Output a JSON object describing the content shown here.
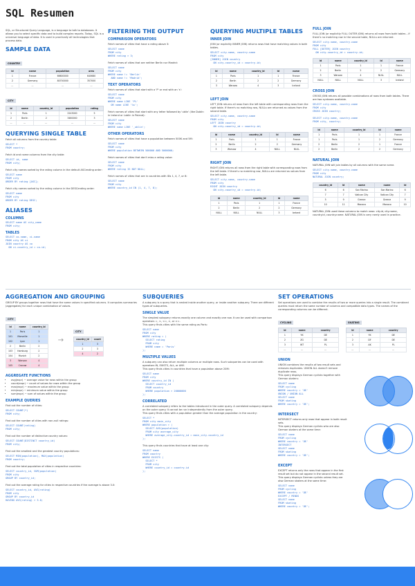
{
  "title": "SQL Resumen",
  "intro": "SQL, or Structured Query Language, is a language to talk to databases. It allows you to select specific data and to build complex reports. Today, SQL is a universal language of data. It is used in practically all technologies that process data.",
  "sample_data": {
    "heading": "SAMPLE DATA",
    "country_caption": "COUNTRY",
    "country_cols": [
      "id",
      "name",
      "population",
      "area"
    ],
    "country_rows": [
      [
        "1",
        "France",
        "66600000",
        "640680"
      ],
      [
        "2",
        "Germany",
        "80700000",
        "357000"
      ],
      [
        "...",
        "...",
        "...",
        "..."
      ]
    ],
    "city_caption": "CITY",
    "city_cols": [
      "id",
      "name",
      "country_id",
      "population",
      "rating"
    ],
    "city_rows": [
      [
        "1",
        "Paris",
        "1",
        "2243000",
        "5"
      ],
      [
        "2",
        "Berlin",
        "2",
        "3460000",
        "3"
      ],
      [
        "...",
        "...",
        "...",
        "...",
        "..."
      ]
    ]
  },
  "single_table": {
    "heading": "QUERYING SINGLE TABLE",
    "t1": "Fetch all columns from the country table:",
    "c1": "SELECT *\nFROM country;",
    "t2": "Fetch id and name columns from the city table:",
    "c2": "SELECT id, name\nFROM city;",
    "t3": "Fetch city names sorted by the rating column in the default ASCending order:",
    "c3": "SELECT name\nFROM city\nORDER BY rating [ASC];",
    "t4": "Fetch city names sorted by the rating column in the DESCending order:",
    "c4": "SELECT name\nFROM city\nORDER BY rating DESC;"
  },
  "aliases": {
    "heading": "ALIASES",
    "columns_label": "COLUMNS",
    "columns_code": "SELECT name AS city_name\nFROM city;",
    "tables_label": "TABLES",
    "tables_code": "SELECT co.name, ci.name\nFROM city AS ci\nJOIN country AS co\n  ON ci.country_id = co.id;"
  },
  "filtering": {
    "heading": "FILTERING THE OUTPUT",
    "cmp_label": "COMPARISON OPERATORS",
    "t1": "Fetch names of cities that have a rating above 3:",
    "c1": "SELECT name\nFROM city\nWHERE rating > 3;",
    "t2": "Fetch names of cities that are neither Berlin nor Madrid:",
    "c2": "SELECT name\nFROM city\nWHERE name != 'Berlin'\n  AND name != 'Madrid';",
    "text_label": "TEXT OPERATORS",
    "t3": "Fetch names of cities that start with a 'P' or end with an 's':",
    "c3": "SELECT name\nFROM city\nWHERE name LIKE 'P%'\n  OR name LIKE '%s';",
    "t4": "Fetch names of cities that start with any letter followed by 'ublin' (like Dublin in Ireland or Lublin in Poland):",
    "c4": "SELECT name\nFROM city\nWHERE name LIKE '_ublin';",
    "other_label": "OTHER OPERATORS",
    "t5": "Fetch names of cities that have a population between 500K and 5M:",
    "c5": "SELECT name\nFROM city\nWHERE population BETWEEN 500000 AND 5000000;",
    "t6": "Fetch names of cities that don't miss a rating value:",
    "c6": "SELECT name\nFROM city\nWHERE rating IS NOT NULL;",
    "t7": "Fetch names of cities that are in countries with IDs 1, 4, 7, or 8:",
    "c7": "SELECT name\nFROM city\nWHERE country_id IN (1, 4, 7, 8);"
  },
  "multiple": {
    "heading": "QUERYING MULTIPLE TABLES",
    "inner_label": "INNER JOIN",
    "inner_text": "JOIN (or explicitly INNER JOIN) returns rows that have matching values in both tables.",
    "inner_code": "SELECT city.name, country.name\nFROM city\n[INNER] JOIN country\n  ON city.country_id = country.id;",
    "inner_cols": [
      "id",
      "name",
      "country_id",
      "id",
      "name"
    ],
    "inner_rows": [
      [
        "1",
        "Paris",
        "1",
        "1",
        "France"
      ],
      [
        "2",
        "Berlin",
        "2",
        "2",
        "Germany"
      ],
      [
        "3",
        "Warsaw",
        "4",
        "3",
        "Iceland"
      ]
    ],
    "city_cap": "CITY",
    "country_cap": "COUNTRY",
    "left_label": "LEFT JOIN",
    "left_text": "LEFT JOIN returns all rows from the left table with corresponding rows from the right table. If there's no matching row, NULLs are returned as values from the second table.",
    "left_code": "SELECT city.name, country.name\nFROM city\nLEFT JOIN country\n  ON city.country_id = country.id;",
    "left_rows": [
      [
        "1",
        "Paris",
        "1",
        "1",
        "France"
      ],
      [
        "2",
        "Berlin",
        "2",
        "2",
        "Germany"
      ],
      [
        "3",
        "Warsaw",
        "4",
        "NULL",
        "NULL"
      ]
    ],
    "right_label": "RIGHT JOIN",
    "right_text": "RIGHT JOIN returns all rows from the right table with corresponding rows from the left table. If there's no matching row, NULLs are returned as values from the left table.",
    "right_code": "SELECT city.name, country.name\nFROM city\nRIGHT JOIN country\n  ON city.country_id = country.id;",
    "right_rows": [
      [
        "1",
        "Paris",
        "1",
        "1",
        "France"
      ],
      [
        "2",
        "Berlin",
        "2",
        "2",
        "Germany"
      ],
      [
        "NULL",
        "NULL",
        "NULL",
        "3",
        "Iceland"
      ]
    ]
  },
  "full": {
    "heading": "FULL JOIN",
    "text": "FULL JOIN (or explicitly FULL OUTER JOIN) returns all rows from both tables – if there's no matching row in the second table, NULLs are returned.",
    "code": "SELECT city.name, country.name\nFROM city\nFULL [OUTER] JOIN country\n  ON city.country_id = country.id;",
    "rows": [
      [
        "1",
        "Paris",
        "1",
        "1",
        "France"
      ],
      [
        "2",
        "Berlin",
        "2",
        "2",
        "Germany"
      ],
      [
        "3",
        "Warsaw",
        "4",
        "NULL",
        "NULL"
      ],
      [
        "NULL",
        "NULL",
        "NULL",
        "3",
        "Iceland"
      ]
    ]
  },
  "cross": {
    "heading": "CROSS JOIN",
    "text": "CROSS JOIN returns all possible combinations of rows from both tables. There are two syntaxes available.",
    "code1": "SELECT city.name, country.name\nFROM city\nCROSS JOIN country;",
    "code2": "SELECT city.name, country.name\nFROM city, country;",
    "rows": [
      [
        "1",
        "Paris",
        "1",
        "1",
        "France"
      ],
      [
        "1",
        "Paris",
        "1",
        "2",
        "Germany"
      ],
      [
        "2",
        "Berlin",
        "2",
        "1",
        "France"
      ],
      [
        "2",
        "Berlin",
        "2",
        "2",
        "Germany"
      ]
    ]
  },
  "natural": {
    "heading": "NATURAL JOIN",
    "text": "NATURAL JOIN will join tables by all columns with the same name.",
    "code": "SELECT city.name, country.name\nFROM city\nNATURAL JOIN country;",
    "cols": [
      "country_id",
      "id",
      "name",
      "name",
      "id"
    ],
    "rows": [
      [
        "6",
        "6",
        "San Marino",
        "San Marino",
        "6"
      ],
      [
        "7",
        "7",
        "Vatican City",
        "Vatican City",
        "7"
      ],
      [
        "5",
        "9",
        "Greece",
        "Greece",
        "9"
      ],
      [
        "10",
        "11",
        "Monaco",
        "Monaco",
        "10"
      ]
    ],
    "text2": "NATURAL JOIN used these columns to match rows: city.id, city.name, country.id, country.name. NATURAL JOIN is very rarely used in practice."
  },
  "aggregation": {
    "heading": "AGGREGATION AND GROUPING",
    "text": "GROUP BY groups together rows that have the same values in specified columns. It computes summaries (aggregates) for each unique combination of values.",
    "city_cap": "CITY",
    "cols": [
      "id",
      "name",
      "country_id"
    ],
    "rows": [
      [
        "1",
        "Paris",
        "1"
      ],
      [
        "101",
        "Marseille",
        "1"
      ],
      [
        "102",
        "Lyon",
        "1"
      ],
      [
        "2",
        "Berlin",
        "2"
      ],
      [
        "103",
        "Hamburg",
        "2"
      ],
      [
        "104",
        "Munich",
        "2"
      ],
      [
        "3",
        "Warsaw",
        "4"
      ],
      [
        "105",
        "Cracow",
        "4"
      ]
    ],
    "res_cols": [
      "country_id",
      "count"
    ],
    "res_rows": [
      [
        "1",
        "3"
      ],
      [
        "2",
        "3"
      ],
      [
        "4",
        "2"
      ]
    ],
    "funcs_label": "AGGREGATE FUNCTIONS",
    "funcs": [
      "avg(expr) − average value for rows within the group",
      "count(expr) − count of values for rows within the group",
      "max(expr) − maximum value within the group",
      "min(expr) − minimum value within the group",
      "sum(expr) − sum of values within the group"
    ],
    "ex_label": "EXAMPLE QUERIES",
    "e1": "Find out the number of cities:",
    "q1": "SELECT COUNT(*)\nFROM city;",
    "e2": "Find out the number of cities with non-null ratings:",
    "q2": "SELECT COUNT(rating)\nFROM city;",
    "e3": "Find out the number of distinctive country values:",
    "q3": "SELECT COUNT(DISTINCT country_id)\nFROM city;",
    "e4": "Find out the smallest and the greatest country populations:",
    "q4": "SELECT MIN(population), MAX(population)\nFROM country;",
    "e5": "Find out the total population of cities in respective countries:",
    "q5": "SELECT country_id, SUM(population)\nFROM city\nGROUP BY country_id;",
    "e6": "Find out the average rating for cities in respective countries if the average is above 3.0:",
    "q6": "SELECT country_id, AVG(rating)\nFROM city\nGROUP BY country_id\nHAVING AVG(rating) > 3.0;"
  },
  "subqueries": {
    "heading": "SUBQUERIES",
    "text": "A subquery is a query that is nested inside another query, or inside another subquery. There are different types of subqueries.",
    "single_label": "SINGLE VALUE",
    "single_text": "The simplest subquery returns exactly one column and exactly one row. It can be used with comparison operators =, <, <=, >, or >=.\nThis query finds cities with the same rating as Paris:",
    "single_code": "SELECT name\nFROM city\nWHERE rating = (\n  SELECT rating\n  FROM city\n  WHERE name = 'Paris'\n);",
    "multi_label": "MULTIPLE VALUES",
    "multi_text": "A subquery can also return multiple columns or multiple rows. Such subqueries can be used with operators IN, EXISTS, ALL, or ANY.\nThis query finds cities in countries that have a population above 20M:",
    "multi_code": "SELECT name\nFROM city\nWHERE country_id IN (\n  SELECT country_id\n  FROM country\n  WHERE population > 20000000\n);",
    "corr_label": "CORRELATED",
    "corr_text": "A correlated subquery refers to the tables introduced in the outer query. A correlated subquery depends on the outer query. It cannot be run independently from the outer query.\nThis query finds cities with a population greater than the average population in the country:",
    "corr_code": "SELECT *\nFROM city main_city\nWHERE population > (\n  SELECT AVG(population)\n  FROM city average_city\n  WHERE average_city.country_id = main_city.country_id\n);",
    "corr_text2": "This query finds countries that have at least one city:",
    "corr_code2": "SELECT name\nFROM country\nWHERE EXISTS (\n  SELECT *\n  FROM city\n  WHERE country_id = country.id\n);"
  },
  "set_ops": {
    "heading": "SET OPERATIONS",
    "text": "Set operations are used to combine the results of two or more queries into a single result. The combined queries must return the same number of columns and compatible data types. The names of the corresponding columns can be different.",
    "cycling_cap": "CYCLING",
    "skating_cap": "SKATING",
    "cols": [
      "id",
      "name",
      "country"
    ],
    "cycling_rows": [
      [
        "1",
        "YK",
        "DE"
      ],
      [
        "2",
        "ZG",
        "DE"
      ],
      [
        "3",
        "WT",
        "PL"
      ],
      [
        "...",
        "...",
        "..."
      ]
    ],
    "skating_rows": [
      [
        "1",
        "YK",
        "DE"
      ],
      [
        "2",
        "DF",
        "DE"
      ],
      [
        "3",
        "AK",
        "PL"
      ],
      [
        "...",
        "...",
        "..."
      ]
    ],
    "union_label": "UNION",
    "union_text": "UNION combines the results of two result sets and removes duplicates. UNION ALL doesn't remove duplicate rows.\nThis query displays German cyclists together with German skaters:",
    "union_code": "SELECT name\nFROM cycling\nWHERE country = 'DE'\nUNION / UNION ALL\nSELECT name\nFROM skating\nWHERE country = 'DE';",
    "intersect_label": "INTERSECT",
    "intersect_text": "INTERSECT returns only rows that appear in both result sets.\nThis query displays German cyclists who are also German skaters at the same time:",
    "intersect_code": "SELECT name\nFROM cycling\nWHERE country = 'DE'\nINTERSECT\nSELECT name\nFROM skating\nWHERE country = 'DE';",
    "except_label": "EXCEPT",
    "except_text": "EXCEPT returns only the rows that appear in the first result set but do not appear in the second result set.\nThis query displays German cyclists unless they are also German skaters at the same time:",
    "except_code": "SELECT name\nFROM cycling\nWHERE country = 'DE'\nEXCEPT / MINUS\nSELECT name\nFROM skating\nWHERE country = 'DE';"
  },
  "colors": {
    "accent": "#1565c0",
    "code": "#2d6fd1",
    "footer": "#2f83f0"
  }
}
